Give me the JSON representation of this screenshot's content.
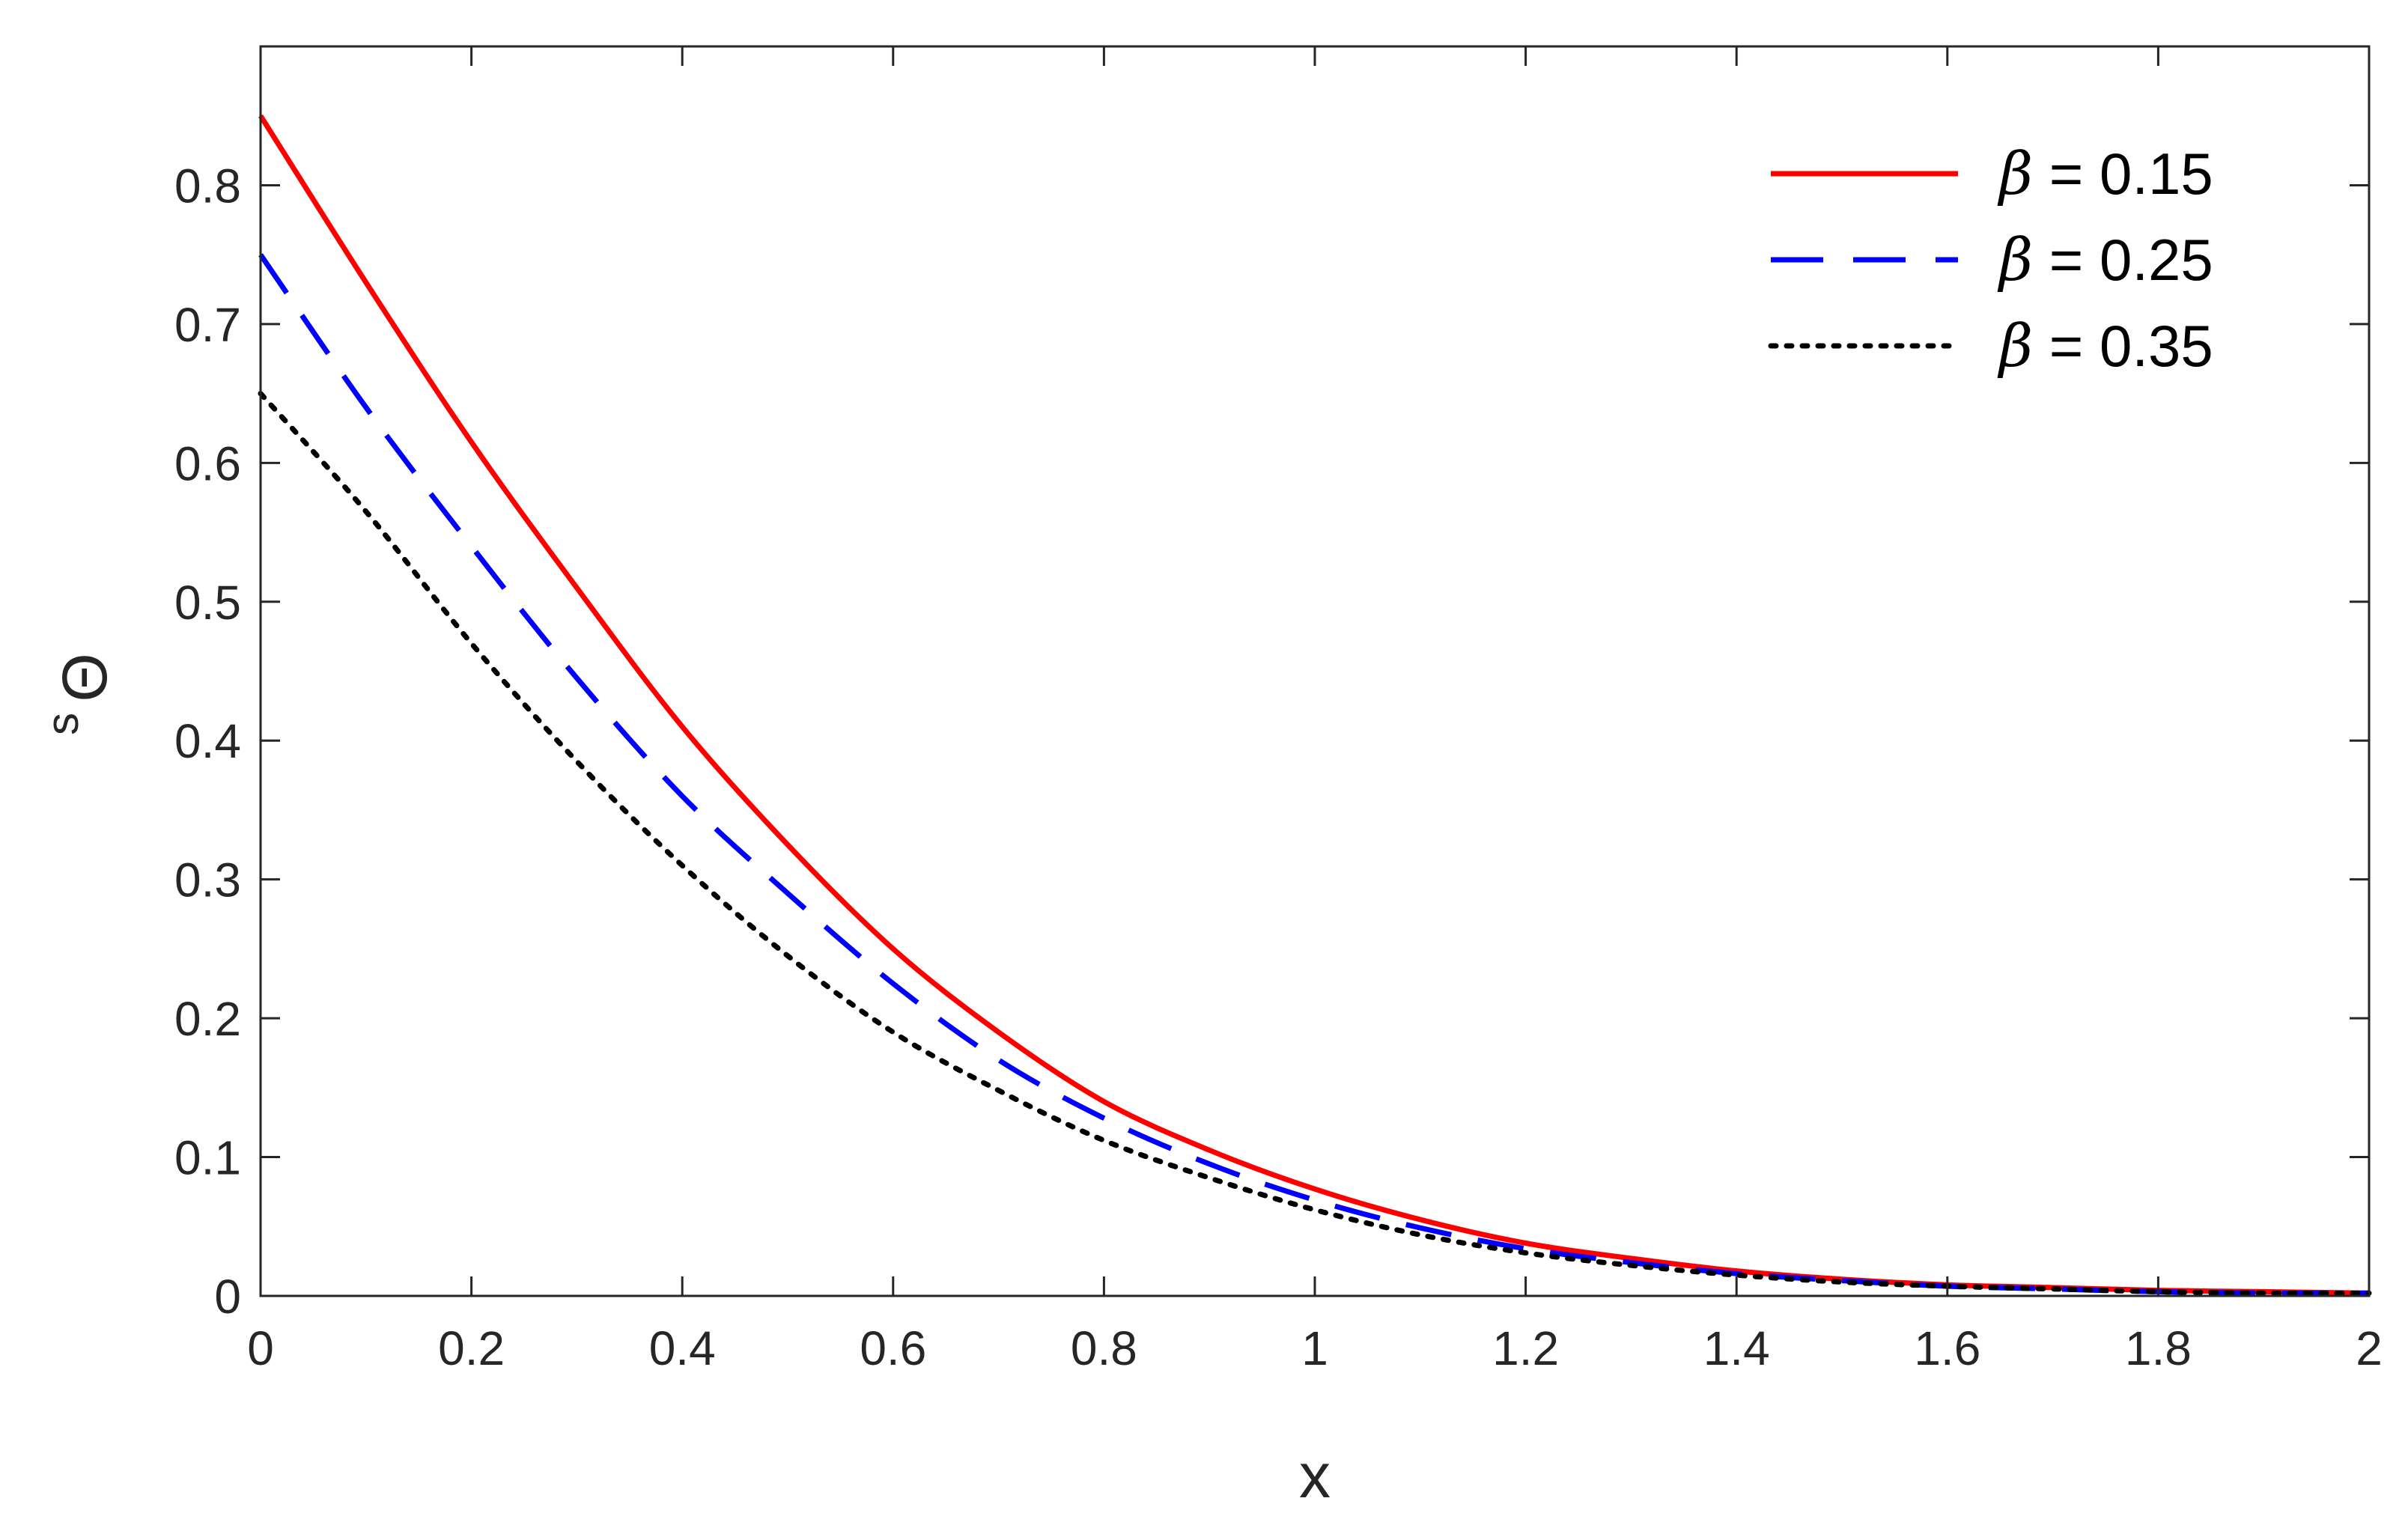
{
  "chart_data": {
    "type": "line",
    "title": "",
    "xlabel": "x",
    "ylabel": "Θ",
    "ylabel_superscript": "s",
    "xlim": [
      0,
      2
    ],
    "ylim": [
      0,
      0.9
    ],
    "grid": false,
    "legend_position": "top-right",
    "x_ticks": [
      0,
      0.2,
      0.4,
      0.6,
      0.8,
      1,
      1.2,
      1.4,
      1.6,
      1.8,
      2
    ],
    "x_tick_labels": [
      "0",
      "0.2",
      "0.4",
      "0.6",
      "0.8",
      "1",
      "1.2",
      "1.4",
      "1.6",
      "1.8",
      "2"
    ],
    "y_ticks": [
      0,
      0.1,
      0.2,
      0.3,
      0.4,
      0.5,
      0.6,
      0.7,
      0.8
    ],
    "y_tick_labels": [
      "0",
      "0.1",
      "0.2",
      "0.3",
      "0.4",
      "0.5",
      "0.6",
      "0.7",
      "0.8"
    ],
    "x": [
      0,
      0.1,
      0.2,
      0.3,
      0.4,
      0.5,
      0.6,
      0.7,
      0.8,
      0.9,
      1.0,
      1.1,
      1.2,
      1.3,
      1.4,
      1.5,
      1.6,
      1.7,
      1.8,
      1.9,
      2.0
    ],
    "series": [
      {
        "name": "β = 0.15",
        "legend_symbol": "β",
        "legend_value": "= 0.15",
        "color": "#ff0000",
        "style": "solid",
        "values": [
          0.85,
          0.73,
          0.615,
          0.51,
          0.41,
          0.325,
          0.25,
          0.19,
          0.14,
          0.105,
          0.077,
          0.055,
          0.038,
          0.027,
          0.018,
          0.012,
          0.008,
          0.006,
          0.004,
          0.003,
          0.002
        ]
      },
      {
        "name": "β = 0.25",
        "legend_symbol": "β",
        "legend_value": "= 0.25",
        "color": "#0000ff",
        "style": "dashed",
        "values": [
          0.75,
          0.64,
          0.54,
          0.445,
          0.36,
          0.29,
          0.225,
          0.17,
          0.128,
          0.095,
          0.069,
          0.049,
          0.034,
          0.024,
          0.016,
          0.011,
          0.007,
          0.005,
          0.003,
          0.002,
          0.002
        ]
      },
      {
        "name": "β = 0.35",
        "legend_symbol": "β",
        "legend_value": "= 0.35",
        "color": "#000000",
        "style": "dotted",
        "values": [
          0.65,
          0.565,
          0.47,
          0.385,
          0.31,
          0.245,
          0.19,
          0.148,
          0.112,
          0.085,
          0.062,
          0.044,
          0.031,
          0.022,
          0.015,
          0.01,
          0.007,
          0.005,
          0.003,
          0.002,
          0.002
        ]
      }
    ]
  }
}
